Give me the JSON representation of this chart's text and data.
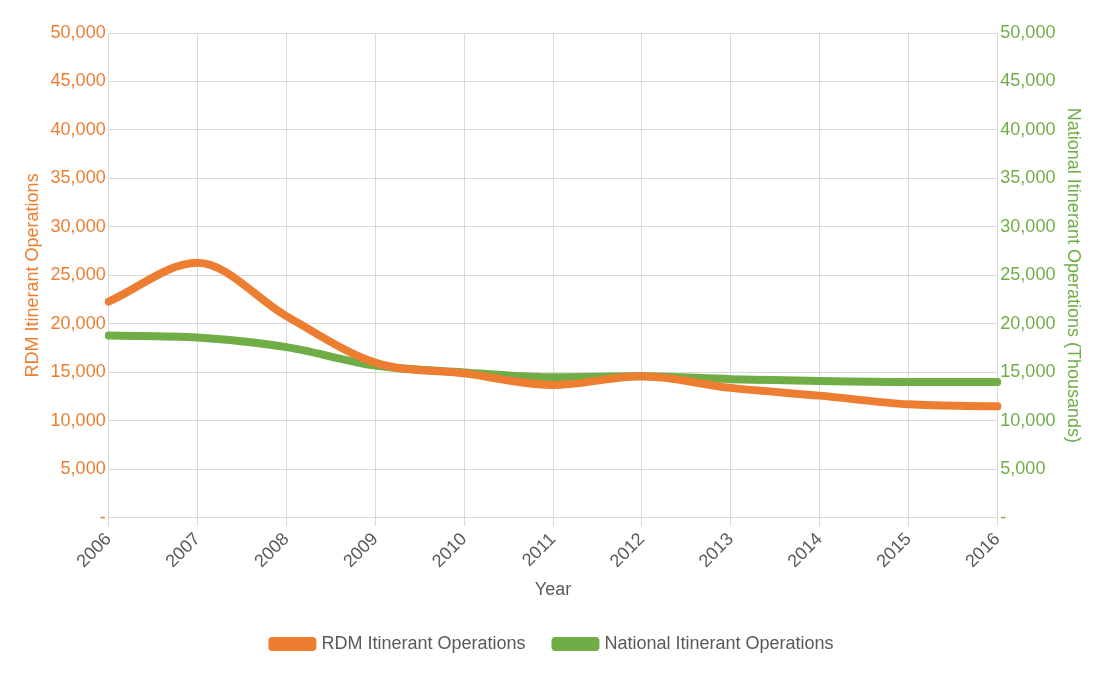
{
  "chart_data": {
    "type": "line",
    "xlabel": "Year",
    "ylabel": "RDM Itinerant Operations",
    "y2label": "National Itinerant Operations (Thousands)",
    "categories": [
      "2006",
      "2007",
      "2008",
      "2009",
      "2010",
      "2011",
      "2012",
      "2013",
      "2014",
      "2015",
      "2016"
    ],
    "series": [
      {
        "name": "RDM Itinerant Operations",
        "color": "#ed7d31",
        "values": [
          22300,
          26300,
          20800,
          16000,
          14900,
          13700,
          14600,
          13400,
          12600,
          11700,
          11500
        ]
      },
      {
        "name": "National Itinerant Operations",
        "color": "#70ad47",
        "axis": "y2",
        "values": [
          18800,
          18600,
          17600,
          15700,
          15000,
          14500,
          14600,
          14300,
          14100,
          14000,
          14000
        ]
      }
    ],
    "ylim": [
      0,
      50000
    ],
    "yticks": [
      {
        "value": 0,
        "label": "-"
      },
      {
        "value": 5000,
        "label": "5,000"
      },
      {
        "value": 10000,
        "label": "10,000"
      },
      {
        "value": 15000,
        "label": "15,000"
      },
      {
        "value": 20000,
        "label": "20,000"
      },
      {
        "value": 25000,
        "label": "25,000"
      },
      {
        "value": 30000,
        "label": "30,000"
      },
      {
        "value": 35000,
        "label": "35,000"
      },
      {
        "value": 40000,
        "label": "40,000"
      },
      {
        "value": 45000,
        "label": "45,000"
      },
      {
        "value": 50000,
        "label": "50,000"
      }
    ],
    "y2lim": [
      0,
      50000
    ],
    "y2ticks": [
      {
        "value": 0,
        "label": "-"
      },
      {
        "value": 5000,
        "label": "5,000"
      },
      {
        "value": 10000,
        "label": "10,000"
      },
      {
        "value": 15000,
        "label": "15,000"
      },
      {
        "value": 20000,
        "label": "20,000"
      },
      {
        "value": 25000,
        "label": "25,000"
      },
      {
        "value": 30000,
        "label": "30,000"
      },
      {
        "value": 35000,
        "label": "35,000"
      },
      {
        "value": 40000,
        "label": "40,000"
      },
      {
        "value": 45000,
        "label": "45,000"
      },
      {
        "value": 50000,
        "label": "50,000"
      }
    ],
    "grid": true,
    "legend": "bottom",
    "marker": "none",
    "line_style": "solid"
  }
}
